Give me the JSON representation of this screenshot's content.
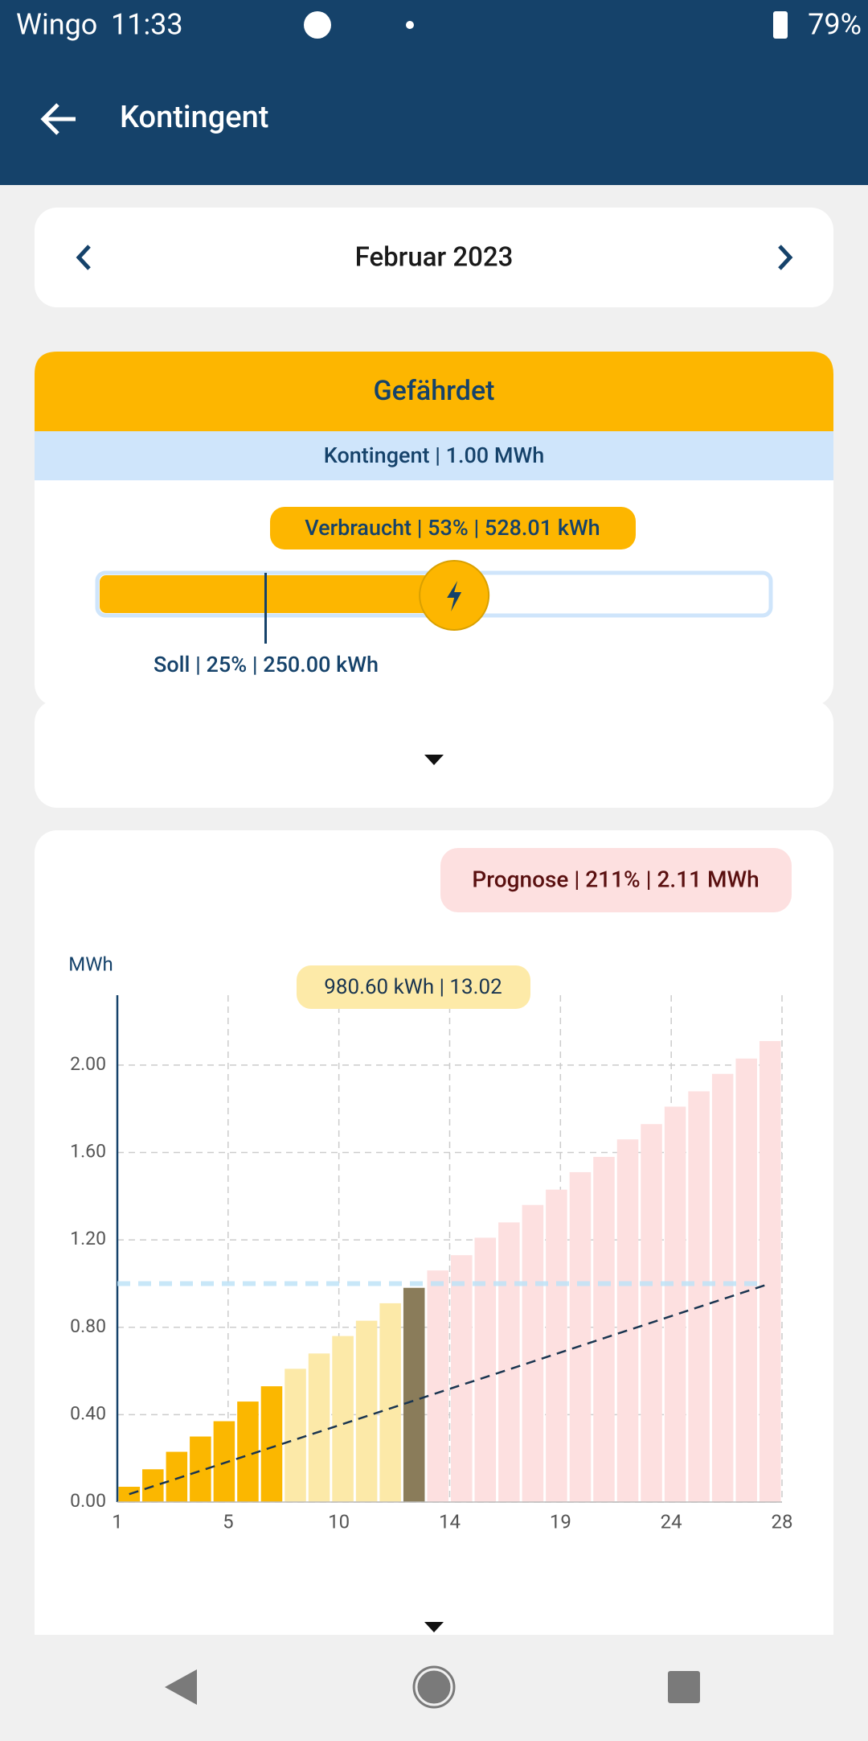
{
  "status_bar": {
    "carrier": "Wingo",
    "time": "11:33",
    "battery": "79%"
  },
  "app_bar": {
    "title": "Kontingent"
  },
  "month_selector": {
    "label": "Februar 2023"
  },
  "status_card": {
    "status": "Gefährdet",
    "quota": "Kontingent | 1.00 MWh",
    "consumed": {
      "label": "Verbraucht | 53% | 528.01 kWh",
      "percent": 53
    },
    "target": {
      "label": "Soll | 25% | 250.00 kWh",
      "percent": 25
    }
  },
  "chart_data": {
    "type": "bar",
    "badge": "Prognose | 211% | 2.11 MWh",
    "y_label": "MWh",
    "tooltip": "980.60 kWh | 13.02",
    "values": [
      0.07,
      0.15,
      0.23,
      0.3,
      0.37,
      0.46,
      0.53,
      0.61,
      0.68,
      0.76,
      0.83,
      0.91,
      0.9806,
      1.06,
      1.13,
      1.21,
      1.28,
      1.36,
      1.43,
      1.51,
      1.58,
      1.66,
      1.73,
      1.81,
      1.88,
      1.96,
      2.03,
      2.11
    ],
    "colors": [
      "#fbb700",
      "#fbb700",
      "#fbb700",
      "#fbb700",
      "#fbb700",
      "#fbb700",
      "#fbb700",
      "#fce9a8",
      "#fce9a8",
      "#fce9a8",
      "#fce9a8",
      "#fce9a8",
      "#8a7c5a",
      "#fde0e0",
      "#fde0e0",
      "#fde0e0",
      "#fde0e0",
      "#fde0e0",
      "#fde0e0",
      "#fde0e0",
      "#fde0e0",
      "#fde0e0",
      "#fde0e0",
      "#fde0e0",
      "#fde0e0",
      "#fde0e0",
      "#fde0e0",
      "#fde0e0"
    ],
    "reference_line": {
      "value": 1.0,
      "color": "#bfe3f7"
    },
    "target_line": {
      "x": [
        1,
        28
      ],
      "values": [
        0.036,
        1.0
      ],
      "color": "#1a3550"
    },
    "ylim": [
      0,
      2.32
    ],
    "yticks": [
      {
        "value": 0,
        "label": "0.00"
      },
      {
        "value": 0.4,
        "label": "0.40"
      },
      {
        "value": 0.8,
        "label": "0.80"
      },
      {
        "value": 1.2,
        "label": "1.20"
      },
      {
        "value": 1.6,
        "label": "1.60"
      },
      {
        "value": 2,
        "label": "2.00"
      }
    ],
    "xticks": [
      1,
      5,
      10,
      14,
      19,
      24,
      28
    ],
    "grid": true
  }
}
